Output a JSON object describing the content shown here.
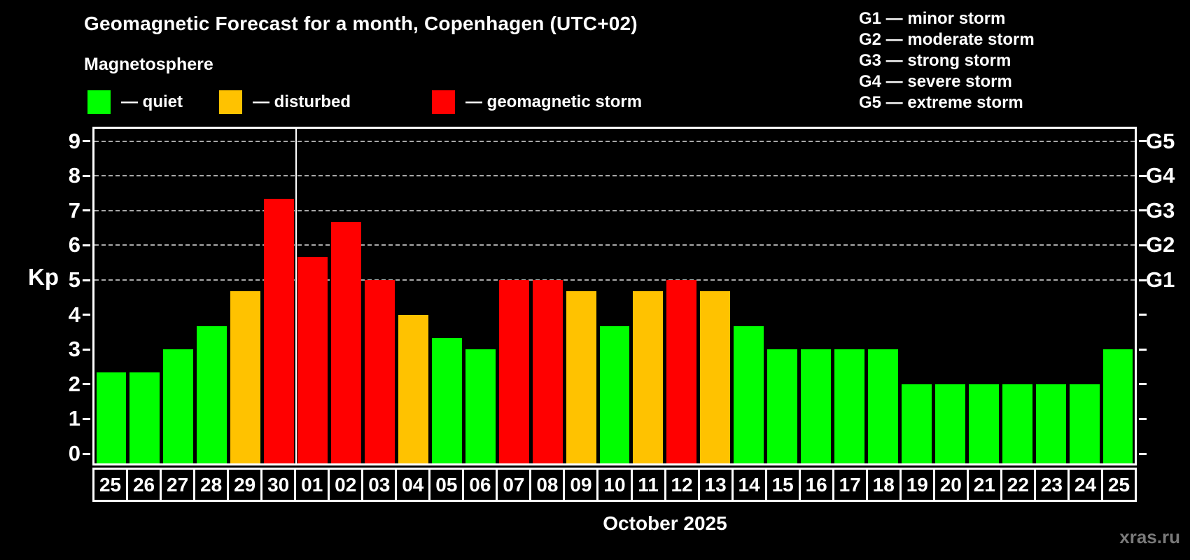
{
  "header": {
    "title": "Geomagnetic Forecast for a month, Copenhagen (UTC+02)",
    "subtitle": "Magnetosphere"
  },
  "legend": {
    "items": [
      {
        "key": "quiet",
        "label": "— quiet",
        "color": "#00ff00"
      },
      {
        "key": "disturbed",
        "label": "— disturbed",
        "color": "#ffc200"
      },
      {
        "key": "storm",
        "label": "— geomagnetic storm",
        "color": "#ff0000"
      }
    ]
  },
  "g_legend": {
    "lines": [
      "G1 — minor storm",
      "G2 — moderate storm",
      "G3 — strong storm",
      "G4 — severe storm",
      "G5 — extreme storm"
    ]
  },
  "watermark": "xras.ru",
  "chart_data": {
    "type": "bar",
    "title": "Geomagnetic Forecast for a month, Copenhagen (UTC+02)",
    "subtitle": "Magnetosphere",
    "xlabel": "October 2025",
    "ylabel": "Kp",
    "ylim": [
      0,
      9
    ],
    "y_ticks": [
      0,
      1,
      2,
      3,
      4,
      5,
      6,
      7,
      8,
      9
    ],
    "grid": "horizontal dashed gray lines at Kp 5,6,7,8,9 only",
    "legend_position": "top-left",
    "categories": [
      "25",
      "26",
      "27",
      "28",
      "29",
      "30",
      "01",
      "02",
      "03",
      "04",
      "05",
      "06",
      "07",
      "08",
      "09",
      "10",
      "11",
      "12",
      "13",
      "14",
      "15",
      "16",
      "17",
      "18",
      "19",
      "20",
      "21",
      "22",
      "23",
      "24",
      "25"
    ],
    "values": [
      2.33,
      2.33,
      3,
      3.67,
      4.67,
      7.33,
      5.67,
      6.67,
      5,
      4,
      3.33,
      3,
      5,
      5,
      4.67,
      3.67,
      4.67,
      5,
      4.67,
      3.67,
      3,
      3,
      3,
      3,
      2,
      2,
      2,
      2,
      2,
      2,
      3
    ],
    "statuses": [
      "quiet",
      "quiet",
      "quiet",
      "quiet",
      "disturbed",
      "storm",
      "storm",
      "storm",
      "storm",
      "disturbed",
      "quiet",
      "quiet",
      "storm",
      "storm",
      "disturbed",
      "quiet",
      "disturbed",
      "storm",
      "disturbed",
      "quiet",
      "quiet",
      "quiet",
      "quiet",
      "quiet",
      "quiet",
      "quiet",
      "quiet",
      "quiet",
      "quiet",
      "quiet",
      "quiet"
    ],
    "colors": {
      "quiet": "#00ff00",
      "disturbed": "#ffc200",
      "storm": "#ff0000"
    },
    "right_axis_labels": [
      {
        "label": "G1",
        "kp": 5
      },
      {
        "label": "G2",
        "kp": 6
      },
      {
        "label": "G3",
        "kp": 7
      },
      {
        "label": "G4",
        "kp": 8
      },
      {
        "label": "G5",
        "kp": 9
      }
    ],
    "divider_after_category_index": 5
  }
}
